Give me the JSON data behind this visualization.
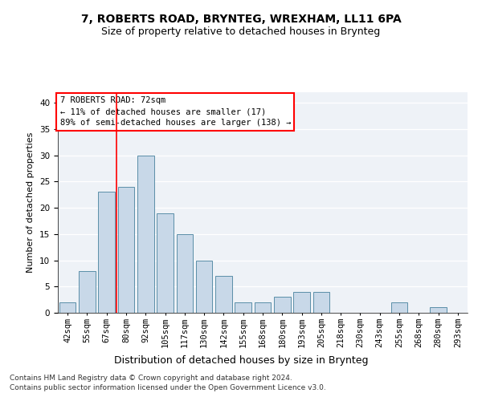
{
  "title1": "7, ROBERTS ROAD, BRYNTEG, WREXHAM, LL11 6PA",
  "title2": "Size of property relative to detached houses in Brynteg",
  "xlabel": "Distribution of detached houses by size in Brynteg",
  "ylabel": "Number of detached properties",
  "categories": [
    "42sqm",
    "55sqm",
    "67sqm",
    "80sqm",
    "92sqm",
    "105sqm",
    "117sqm",
    "130sqm",
    "142sqm",
    "155sqm",
    "168sqm",
    "180sqm",
    "193sqm",
    "205sqm",
    "218sqm",
    "230sqm",
    "243sqm",
    "255sqm",
    "268sqm",
    "280sqm",
    "293sqm"
  ],
  "values": [
    2,
    8,
    23,
    24,
    30,
    19,
    15,
    10,
    7,
    2,
    2,
    3,
    4,
    4,
    0,
    0,
    0,
    2,
    0,
    1,
    0
  ],
  "bar_color": "#c8d8e8",
  "bar_edge_color": "#5b8fa8",
  "red_line_index": 2.5,
  "annotation_lines": [
    "7 ROBERTS ROAD: 72sqm",
    "← 11% of detached houses are smaller (17)",
    "89% of semi-detached houses are larger (138) →"
  ],
  "ylim": [
    0,
    42
  ],
  "yticks": [
    0,
    5,
    10,
    15,
    20,
    25,
    30,
    35,
    40
  ],
  "footer1": "Contains HM Land Registry data © Crown copyright and database right 2024.",
  "footer2": "Contains public sector information licensed under the Open Government Licence v3.0.",
  "background_color": "#eef2f7",
  "grid_color": "#ffffff",
  "title1_fontsize": 10,
  "title2_fontsize": 9,
  "xlabel_fontsize": 9,
  "ylabel_fontsize": 8,
  "tick_fontsize": 7.5,
  "annotation_fontsize": 7.5,
  "footer_fontsize": 6.5
}
